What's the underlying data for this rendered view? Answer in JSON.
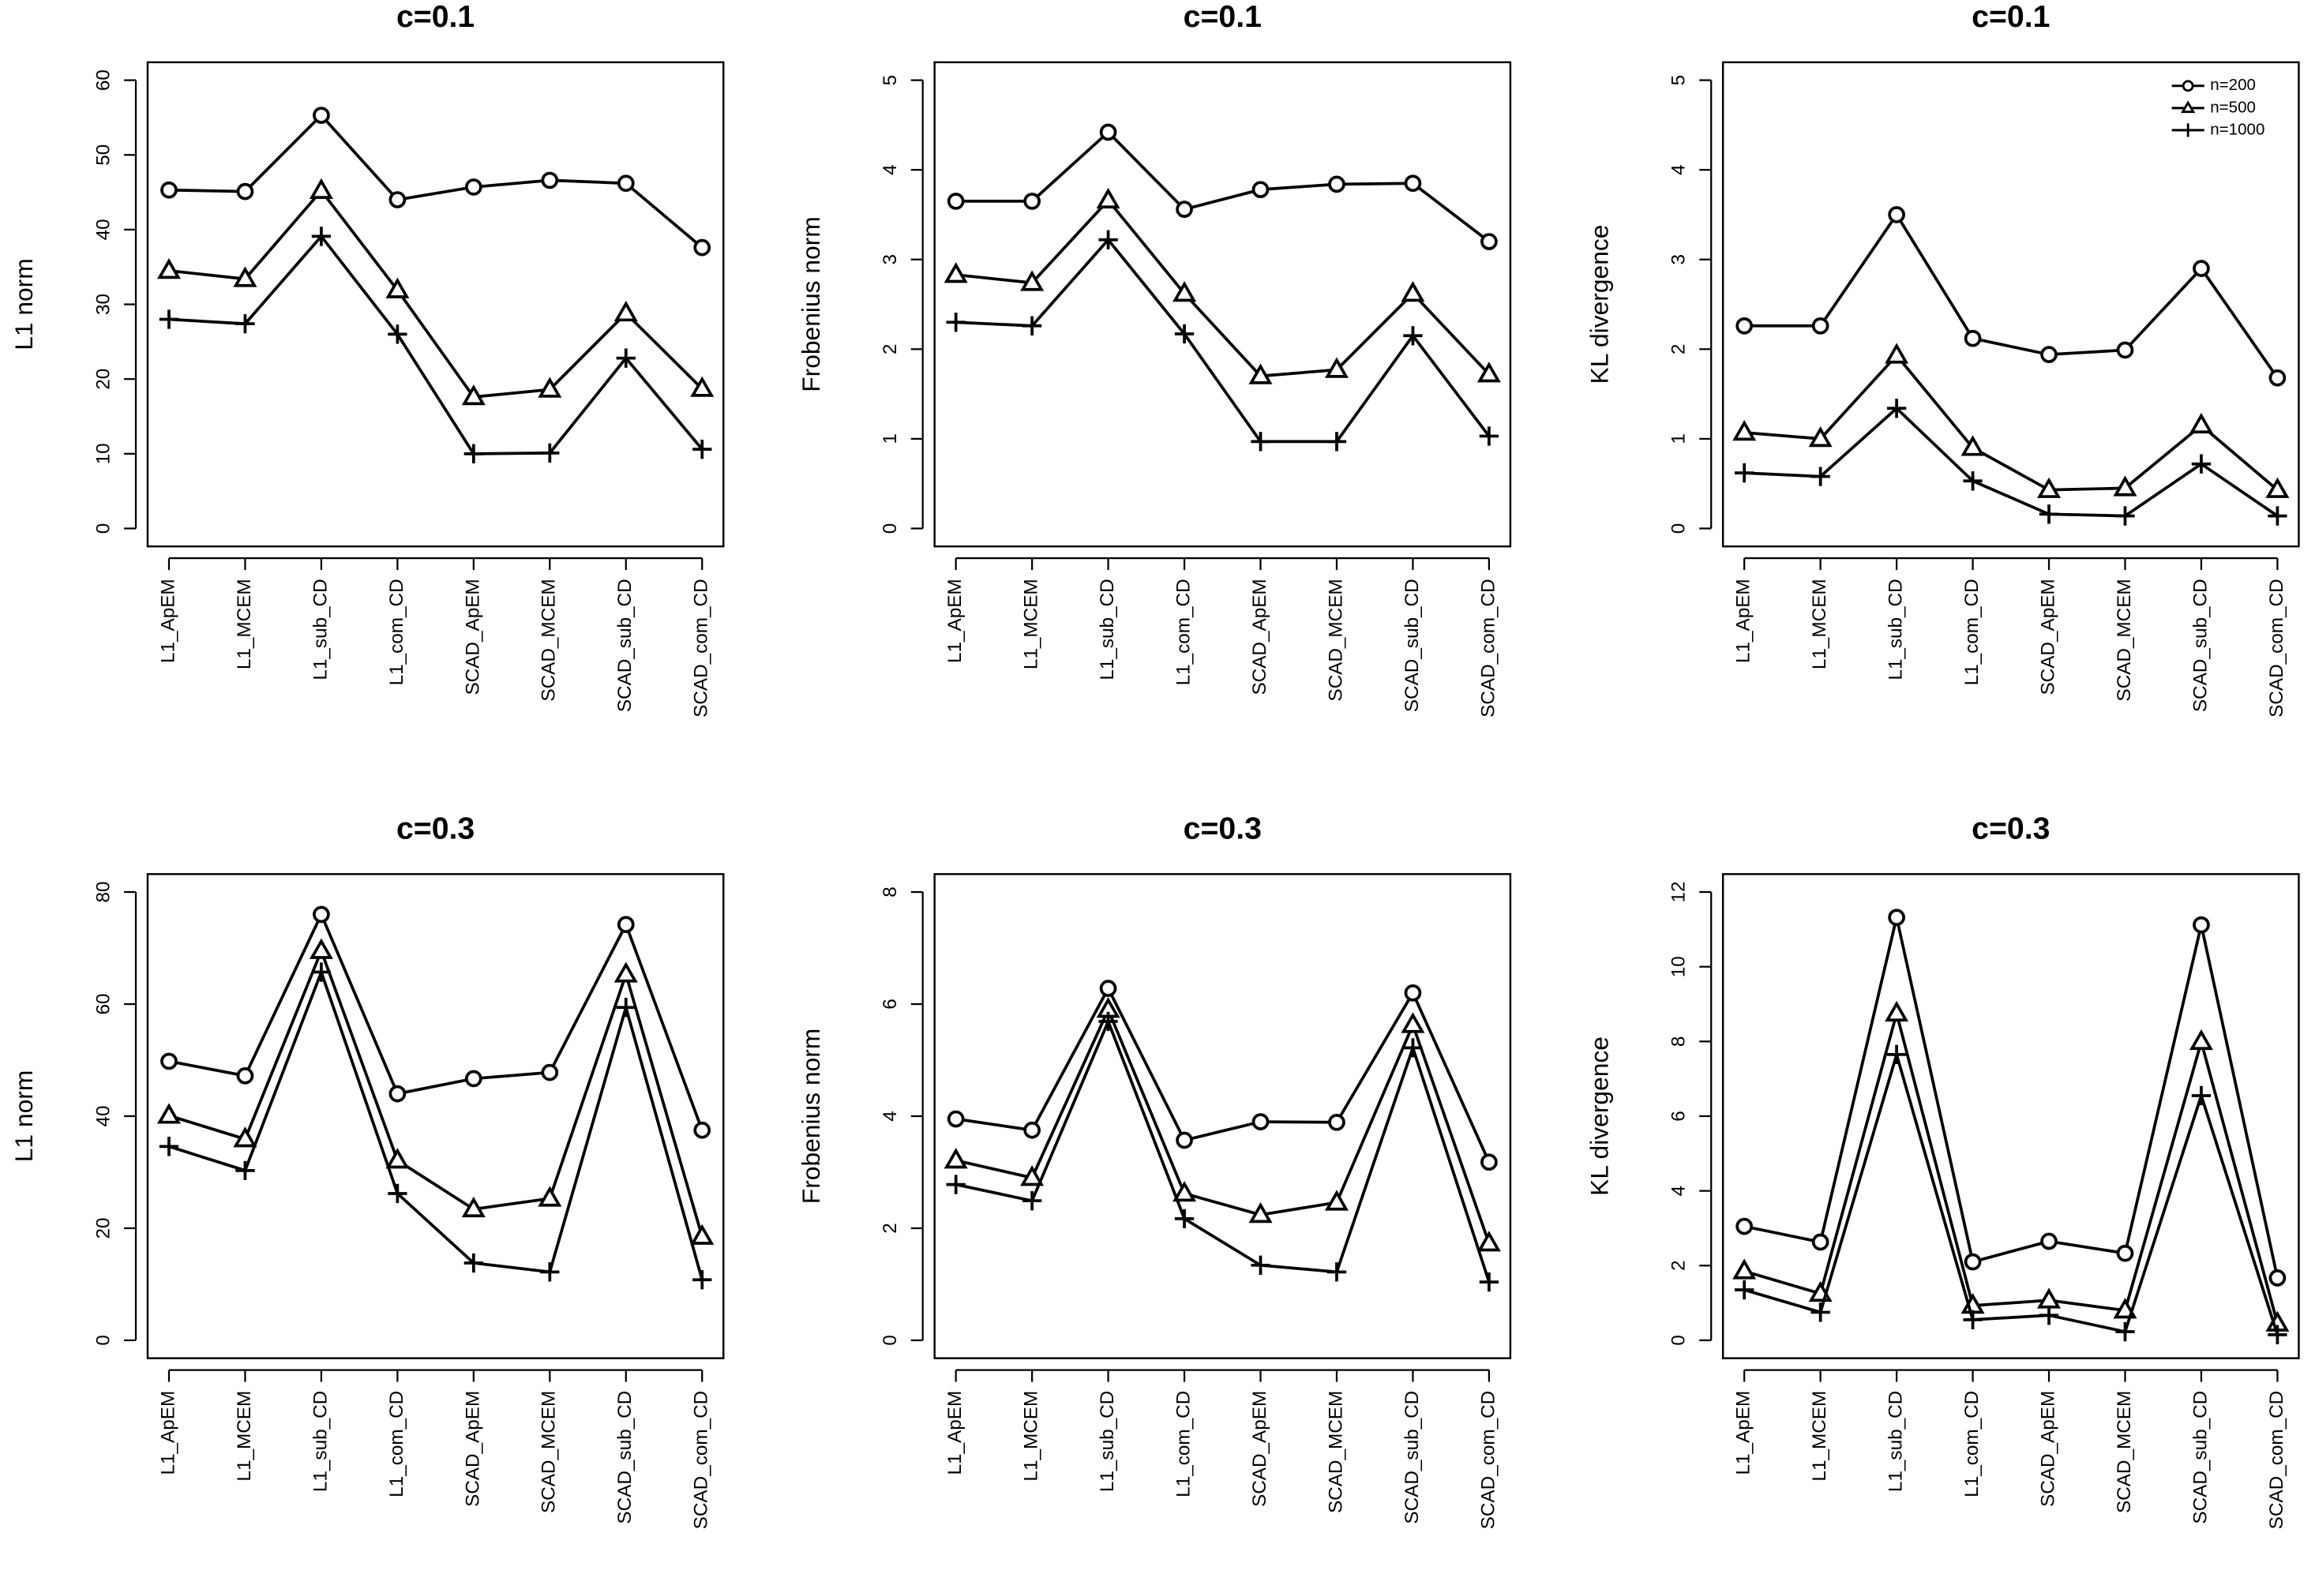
{
  "chart_data": [
    {
      "type": "line",
      "title": "c=0.1",
      "ylabel": "L1 norm",
      "categories": [
        "L1_ApEM",
        "L1_MCEM",
        "L1_sub_CD",
        "L1_com_CD",
        "SCAD_ApEM",
        "SCAD_MCEM",
        "SCAD_sub_CD",
        "SCAD_com_CD"
      ],
      "series": [
        {
          "name": "n=200",
          "marker": "circle",
          "color": "#000000",
          "values": [
            45.3,
            45.1,
            55.3,
            44.0,
            45.7,
            46.6,
            46.2,
            37.6
          ]
        },
        {
          "name": "n=500",
          "marker": "triangle",
          "color": "#000000",
          "values": [
            34.5,
            33.4,
            45.2,
            31.9,
            17.6,
            18.6,
            28.8,
            18.7
          ]
        },
        {
          "name": "n=1000",
          "marker": "plus",
          "color": "#000000",
          "values": [
            28.0,
            27.4,
            39.1,
            26.0,
            10.0,
            10.1,
            22.8,
            10.6
          ]
        }
      ],
      "ylim": [
        -2.4,
        62.4
      ],
      "yticks": [
        0,
        10,
        20,
        30,
        40,
        50,
        60
      ]
    },
    {
      "type": "line",
      "title": "c=0.1",
      "ylabel": "Frobenius norm",
      "categories": [
        "L1_ApEM",
        "L1_MCEM",
        "L1_sub_CD",
        "L1_com_CD",
        "SCAD_ApEM",
        "SCAD_MCEM",
        "SCAD_sub_CD",
        "SCAD_com_CD"
      ],
      "series": [
        {
          "name": "n=200",
          "marker": "circle",
          "color": "#000000",
          "values": [
            3.65,
            3.65,
            4.42,
            3.56,
            3.78,
            3.84,
            3.85,
            3.2
          ]
        },
        {
          "name": "n=500",
          "marker": "triangle",
          "color": "#000000",
          "values": [
            2.83,
            2.74,
            3.66,
            2.62,
            1.7,
            1.77,
            2.62,
            1.72
          ]
        },
        {
          "name": "n=1000",
          "marker": "plus",
          "color": "#000000",
          "values": [
            2.3,
            2.26,
            3.22,
            2.17,
            0.97,
            0.97,
            2.15,
            1.03
          ]
        }
      ],
      "ylim": [
        -0.2,
        5.2
      ],
      "yticks": [
        0,
        1,
        2,
        3,
        4,
        5
      ]
    },
    {
      "type": "line",
      "title": "c=0.1",
      "ylabel": "KL divergence",
      "legend": "top-right",
      "categories": [
        "L1_ApEM",
        "L1_MCEM",
        "L1_sub_CD",
        "L1_com_CD",
        "SCAD_ApEM",
        "SCAD_MCEM",
        "SCAD_sub_CD",
        "SCAD_com_CD"
      ],
      "series": [
        {
          "name": "n=200",
          "marker": "circle",
          "color": "#000000",
          "values": [
            2.26,
            2.26,
            3.5,
            2.12,
            1.94,
            1.99,
            2.9,
            1.68
          ]
        },
        {
          "name": "n=500",
          "marker": "triangle",
          "color": "#000000",
          "values": [
            1.07,
            1.0,
            1.93,
            0.9,
            0.43,
            0.45,
            1.15,
            0.43
          ]
        },
        {
          "name": "n=1000",
          "marker": "plus",
          "color": "#000000",
          "values": [
            0.62,
            0.58,
            1.34,
            0.53,
            0.16,
            0.14,
            0.72,
            0.14
          ]
        }
      ],
      "ylim": [
        -0.2,
        5.2
      ],
      "yticks": [
        0,
        1,
        2,
        3,
        4,
        5
      ]
    },
    {
      "type": "line",
      "title": "c=0.3",
      "ylabel": "L1 norm",
      "categories": [
        "L1_ApEM",
        "L1_MCEM",
        "L1_sub_CD",
        "L1_com_CD",
        "SCAD_ApEM",
        "SCAD_MCEM",
        "SCAD_sub_CD",
        "SCAD_com_CD"
      ],
      "series": [
        {
          "name": "n=200",
          "marker": "circle",
          "color": "#000000",
          "values": [
            49.8,
            47.2,
            76.0,
            44.0,
            46.7,
            47.8,
            74.2,
            37.5
          ]
        },
        {
          "name": "n=500",
          "marker": "triangle",
          "color": "#000000",
          "values": [
            40.1,
            35.9,
            69.5,
            32.1,
            23.4,
            25.3,
            65.3,
            18.5
          ]
        },
        {
          "name": "n=1000",
          "marker": "plus",
          "color": "#000000",
          "values": [
            34.6,
            30.3,
            65.7,
            26.2,
            13.8,
            12.2,
            59.4,
            10.8
          ]
        }
      ],
      "ylim": [
        -3.2,
        83.2
      ],
      "yticks": [
        0,
        20,
        40,
        60,
        80
      ]
    },
    {
      "type": "line",
      "title": "c=0.3",
      "ylabel": "Frobenius norm",
      "categories": [
        "L1_ApEM",
        "L1_MCEM",
        "L1_sub_CD",
        "L1_com_CD",
        "SCAD_ApEM",
        "SCAD_MCEM",
        "SCAD_sub_CD",
        "SCAD_com_CD"
      ],
      "series": [
        {
          "name": "n=200",
          "marker": "circle",
          "color": "#000000",
          "values": [
            3.95,
            3.75,
            6.28,
            3.57,
            3.9,
            3.89,
            6.2,
            3.18
          ]
        },
        {
          "name": "n=500",
          "marker": "triangle",
          "color": "#000000",
          "values": [
            3.21,
            2.9,
            5.9,
            2.62,
            2.24,
            2.46,
            5.63,
            1.73
          ]
        },
        {
          "name": "n=1000",
          "marker": "plus",
          "color": "#000000",
          "values": [
            2.78,
            2.49,
            5.69,
            2.17,
            1.34,
            1.22,
            5.22,
            1.04
          ]
        }
      ],
      "ylim": [
        -0.32,
        8.32
      ],
      "yticks": [
        0,
        2,
        4,
        6,
        8
      ]
    },
    {
      "type": "line",
      "title": "c=0.3",
      "ylabel": "KL divergence",
      "categories": [
        "L1_ApEM",
        "L1_MCEM",
        "L1_sub_CD",
        "L1_com_CD",
        "SCAD_ApEM",
        "SCAD_MCEM",
        "SCAD_sub_CD",
        "SCAD_com_CD"
      ],
      "series": [
        {
          "name": "n=200",
          "marker": "circle",
          "color": "#000000",
          "values": [
            3.05,
            2.63,
            11.32,
            2.1,
            2.65,
            2.33,
            11.12,
            1.67
          ]
        },
        {
          "name": "n=500",
          "marker": "triangle",
          "color": "#000000",
          "values": [
            1.85,
            1.25,
            8.75,
            0.93,
            1.07,
            0.8,
            7.99,
            0.45
          ]
        },
        {
          "name": "n=1000",
          "marker": "plus",
          "color": "#000000",
          "values": [
            1.35,
            0.75,
            7.65,
            0.55,
            0.67,
            0.23,
            6.55,
            0.15
          ]
        }
      ],
      "ylim": [
        -0.48,
        12.48
      ],
      "yticks": [
        0,
        2,
        4,
        6,
        8,
        10,
        12
      ]
    }
  ]
}
